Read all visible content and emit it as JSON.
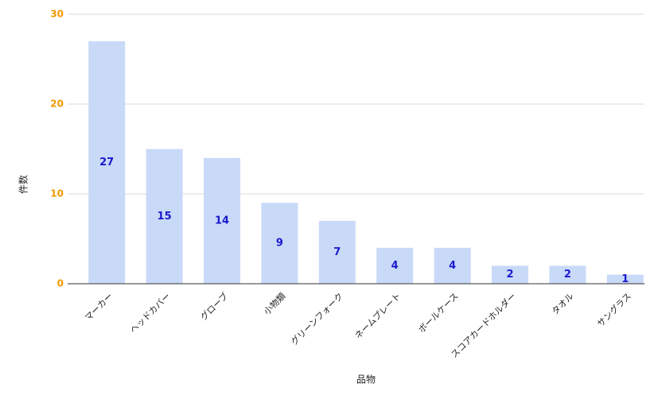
{
  "chart_data": {
    "type": "bar",
    "xlabel": "品物",
    "ylabel": "件数",
    "categories": [
      "マーカー",
      "ヘッドカバー",
      "グローブ",
      "小物類",
      "グリーンフォーク",
      "ネームプレート",
      "ボールケース",
      "スコアカードホルダー",
      "タオル",
      "サングラス"
    ],
    "values": [
      27,
      15,
      14,
      9,
      7,
      4,
      4,
      2,
      2,
      1
    ],
    "color": "#c9d9f8",
    "ylim": [
      0,
      30
    ],
    "yticks": [
      0,
      10,
      20,
      30
    ],
    "grid": true
  }
}
